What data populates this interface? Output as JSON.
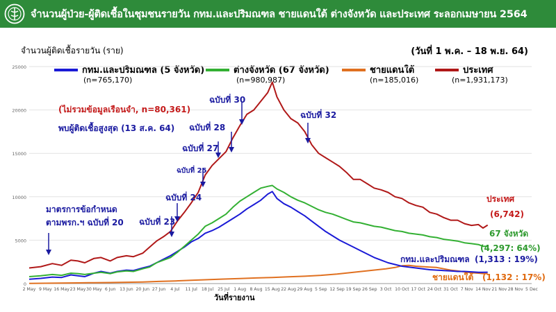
{
  "header": {
    "title": "จำนวนผู้ป่วย-ผู้ติดเชื้อในชุมชนรายวัน กทม.และปริมณฑล ชายแดนใต้ ต่างจังหวัด และประเทศ ระลอกเมษายน 2564",
    "background_color": "#2e8b3a",
    "logo_icon": "ministry-of-public-health-emblem"
  },
  "subtitle": {
    "ylabel": "จำนวนผู้ติดเชื้อรายวัน (ราย)",
    "date_range": "(วันที่ 1 พ.ค. – 18 พ.ย. 64)"
  },
  "legend": [
    {
      "label": "กทม.และปริมณฑล (5 จังหวัด)",
      "n": "(n=765,170)",
      "color": "#1a1ad6"
    },
    {
      "label": "ต่างจังหวัด (67 จังหวัด)",
      "n": "(n=980,987)",
      "color": "#33b033"
    },
    {
      "label": "ชายแดนใต้",
      "n": "(n=185,016)",
      "color": "#e07020"
    },
    {
      "label": "ประเทศ",
      "n": "(n=1,931,173)",
      "color": "#b01818"
    }
  ],
  "annotations": {
    "note_red": "(ไม่รวมข้อมูลเรือนจำ, n=80,361)",
    "note_peak": "พบผู้ติดเชื้อสูงสุด (13 ส.ค. 64)",
    "measure": "มาตรการข้อกำหนด\nตามพรก.ฯ ฉบับที่ 20",
    "measure_line1": "มาตรการข้อกำหนด",
    "measure_line2": "ตามพรก.ฯ ฉบับที่ 20",
    "decrees": [
      {
        "label": "ฉบับที่ 23",
        "x_index": 53
      },
      {
        "label": "ฉบับที่ 24",
        "x_index": 63
      },
      {
        "label": "ฉบับที่ 25",
        "x_index": 69
      },
      {
        "label": "ฉบับที่ 27",
        "x_index": 77
      },
      {
        "label": "ฉบับที่ 28",
        "x_index": 84
      },
      {
        "label": "ฉบับที่ 30",
        "x_index": 91
      },
      {
        "label": "ฉบับที่ 32",
        "x_index": 111
      }
    ],
    "end_labels": {
      "country_name": "ประเทศ",
      "country_value": "(6,742)",
      "provinces_name": "67 จังหวัด",
      "provinces_value": "(4,297: 64%)",
      "bkk_name": "กทม.และปริมณฑล",
      "bkk_value": "(1,313 : 19%)",
      "south_name": "ชายแดนใต้",
      "south_value": "(1,132 : 17%)"
    }
  },
  "chart_data": {
    "type": "line",
    "title": "จำนวนผู้ป่วย-ผู้ติดเชื้อในชุมชนรายวัน กทม.และปริมณฑล ชายแดนใต้ ต่างจังหวัด และประเทศ ระลอกเมษายน 2564",
    "xlabel": "วันที่รายงาน",
    "ylabel": "จำนวนผู้ติดเชื้อรายวัน (ราย)",
    "ylim": [
      0,
      25000
    ],
    "yticks": [
      0,
      5000,
      10000,
      15000,
      20000,
      25000
    ],
    "ytick_labels": [
      "0",
      "5000",
      "10000",
      "15000",
      "20000",
      "25000"
    ],
    "x_range_days": [
      0,
      217
    ],
    "xticks": [
      {
        "day": 0,
        "label": "2 May"
      },
      {
        "day": 7,
        "label": "9 May"
      },
      {
        "day": 14,
        "label": "16 May"
      },
      {
        "day": 21,
        "label": "23 May"
      },
      {
        "day": 28,
        "label": "30 May"
      },
      {
        "day": 35,
        "label": "6 Jun"
      },
      {
        "day": 42,
        "label": "13 Jun"
      },
      {
        "day": 49,
        "label": "20 Jun"
      },
      {
        "day": 56,
        "label": "27 Jun"
      },
      {
        "day": 63,
        "label": "4 Jul"
      },
      {
        "day": 70,
        "label": "11 Jul"
      },
      {
        "day": 77,
        "label": "18 Jul"
      },
      {
        "day": 84,
        "label": "25 Jul"
      },
      {
        "day": 91,
        "label": "1 Aug"
      },
      {
        "day": 98,
        "label": "8 Aug"
      },
      {
        "day": 105,
        "label": "15 Aug"
      },
      {
        "day": 112,
        "label": "22 Aug"
      },
      {
        "day": 119,
        "label": "29 Aug"
      },
      {
        "day": 126,
        "label": "5 Sep"
      },
      {
        "day": 133,
        "label": "12 Sep"
      },
      {
        "day": 140,
        "label": "19 Sep"
      },
      {
        "day": 147,
        "label": "26 Sep"
      },
      {
        "day": 154,
        "label": "3 Oct"
      },
      {
        "day": 161,
        "label": "10 Oct"
      },
      {
        "day": 168,
        "label": "17 Oct"
      },
      {
        "day": 175,
        "label": "24 Oct"
      },
      {
        "day": 182,
        "label": "31 Oct"
      },
      {
        "day": 189,
        "label": "7 Nov"
      },
      {
        "day": 196,
        "label": "14 Nov"
      },
      {
        "day": 203,
        "label": "21 Nov"
      },
      {
        "day": 210,
        "label": "28 Nov"
      },
      {
        "day": 217,
        "label": "5 Dec"
      }
    ],
    "series": [
      {
        "name": "ประเทศ",
        "color": "#b01818",
        "stroke_width": 2,
        "points": [
          [
            0,
            1800
          ],
          [
            5,
            1950
          ],
          [
            10,
            2300
          ],
          [
            14,
            2100
          ],
          [
            18,
            2700
          ],
          [
            21,
            2600
          ],
          [
            24,
            2400
          ],
          [
            28,
            2900
          ],
          [
            31,
            3000
          ],
          [
            35,
            2600
          ],
          [
            38,
            3000
          ],
          [
            42,
            3200
          ],
          [
            45,
            3100
          ],
          [
            49,
            3500
          ],
          [
            52,
            4200
          ],
          [
            55,
            4900
          ],
          [
            58,
            5400
          ],
          [
            61,
            6000
          ],
          [
            64,
            7200
          ],
          [
            67,
            8200
          ],
          [
            70,
            9300
          ],
          [
            73,
            10500
          ],
          [
            76,
            12500
          ],
          [
            79,
            13600
          ],
          [
            82,
            14400
          ],
          [
            85,
            15200
          ],
          [
            88,
            16800
          ],
          [
            91,
            18200
          ],
          [
            94,
            19500
          ],
          [
            97,
            20000
          ],
          [
            100,
            21000
          ],
          [
            103,
            22000
          ],
          [
            105,
            23200
          ],
          [
            107,
            21500
          ],
          [
            110,
            20000
          ],
          [
            113,
            19000
          ],
          [
            116,
            18500
          ],
          [
            119,
            17500
          ],
          [
            122,
            16000
          ],
          [
            125,
            15000
          ],
          [
            128,
            14500
          ],
          [
            131,
            14000
          ],
          [
            134,
            13500
          ],
          [
            137,
            12800
          ],
          [
            140,
            12000
          ],
          [
            143,
            12000
          ],
          [
            146,
            11500
          ],
          [
            149,
            11000
          ],
          [
            152,
            10800
          ],
          [
            155,
            10500
          ],
          [
            158,
            10000
          ],
          [
            161,
            9800
          ],
          [
            164,
            9300
          ],
          [
            167,
            9000
          ],
          [
            170,
            8800
          ],
          [
            173,
            8200
          ],
          [
            176,
            8000
          ],
          [
            179,
            7600
          ],
          [
            182,
            7300
          ],
          [
            185,
            7300
          ],
          [
            188,
            6900
          ],
          [
            191,
            6700
          ],
          [
            194,
            6800
          ],
          [
            196,
            6400
          ],
          [
            198,
            6742
          ]
        ]
      },
      {
        "name": "ต่างจังหวัด (67 จังหวัด)",
        "color": "#33b033",
        "stroke_width": 2,
        "points": [
          [
            0,
            800
          ],
          [
            5,
            900
          ],
          [
            10,
            1050
          ],
          [
            14,
            950
          ],
          [
            18,
            1200
          ],
          [
            21,
            1150
          ],
          [
            24,
            1050
          ],
          [
            28,
            1200
          ],
          [
            31,
            1300
          ],
          [
            35,
            1150
          ],
          [
            38,
            1350
          ],
          [
            42,
            1450
          ],
          [
            45,
            1400
          ],
          [
            49,
            1700
          ],
          [
            52,
            1900
          ],
          [
            55,
            2400
          ],
          [
            58,
            2700
          ],
          [
            61,
            3000
          ],
          [
            64,
            3600
          ],
          [
            67,
            4300
          ],
          [
            70,
            5000
          ],
          [
            73,
            5700
          ],
          [
            76,
            6600
          ],
          [
            79,
            7000
          ],
          [
            82,
            7500
          ],
          [
            85,
            8000
          ],
          [
            88,
            8800
          ],
          [
            91,
            9500
          ],
          [
            94,
            10000
          ],
          [
            97,
            10500
          ],
          [
            100,
            11000
          ],
          [
            103,
            11200
          ],
          [
            105,
            11300
          ],
          [
            107,
            10900
          ],
          [
            110,
            10500
          ],
          [
            113,
            10000
          ],
          [
            116,
            9600
          ],
          [
            119,
            9300
          ],
          [
            122,
            8900
          ],
          [
            125,
            8500
          ],
          [
            128,
            8200
          ],
          [
            131,
            8000
          ],
          [
            134,
            7700
          ],
          [
            137,
            7400
          ],
          [
            140,
            7100
          ],
          [
            143,
            7000
          ],
          [
            146,
            6800
          ],
          [
            149,
            6600
          ],
          [
            152,
            6500
          ],
          [
            155,
            6300
          ],
          [
            158,
            6100
          ],
          [
            161,
            6000
          ],
          [
            164,
            5800
          ],
          [
            167,
            5700
          ],
          [
            170,
            5600
          ],
          [
            173,
            5400
          ],
          [
            176,
            5300
          ],
          [
            179,
            5100
          ],
          [
            182,
            5000
          ],
          [
            185,
            4900
          ],
          [
            188,
            4700
          ],
          [
            191,
            4600
          ],
          [
            194,
            4500
          ],
          [
            196,
            4300
          ],
          [
            198,
            4297
          ]
        ]
      },
      {
        "name": "กทม.และปริมณฑล (5 จังหวัด)",
        "color": "#1a1ad6",
        "stroke_width": 2,
        "points": [
          [
            0,
            500
          ],
          [
            5,
            600
          ],
          [
            10,
            750
          ],
          [
            14,
            700
          ],
          [
            18,
            1000
          ],
          [
            21,
            900
          ],
          [
            24,
            800
          ],
          [
            28,
            1200
          ],
          [
            31,
            1400
          ],
          [
            35,
            1200
          ],
          [
            38,
            1400
          ],
          [
            42,
            1550
          ],
          [
            45,
            1500
          ],
          [
            49,
            1800
          ],
          [
            52,
            2000
          ],
          [
            55,
            2400
          ],
          [
            58,
            2800
          ],
          [
            61,
            3200
          ],
          [
            64,
            3700
          ],
          [
            67,
            4200
          ],
          [
            70,
            4800
          ],
          [
            73,
            5200
          ],
          [
            76,
            5800
          ],
          [
            79,
            6100
          ],
          [
            82,
            6500
          ],
          [
            85,
            7000
          ],
          [
            88,
            7500
          ],
          [
            91,
            8000
          ],
          [
            94,
            8600
          ],
          [
            97,
            9100
          ],
          [
            100,
            9600
          ],
          [
            103,
            10300
          ],
          [
            105,
            10600
          ],
          [
            107,
            9800
          ],
          [
            110,
            9200
          ],
          [
            113,
            8800
          ],
          [
            116,
            8300
          ],
          [
            119,
            7800
          ],
          [
            122,
            7200
          ],
          [
            125,
            6600
          ],
          [
            128,
            6000
          ],
          [
            131,
            5500
          ],
          [
            134,
            5000
          ],
          [
            137,
            4600
          ],
          [
            140,
            4200
          ],
          [
            143,
            3800
          ],
          [
            146,
            3400
          ],
          [
            149,
            3000
          ],
          [
            152,
            2700
          ],
          [
            155,
            2400
          ],
          [
            158,
            2200
          ],
          [
            161,
            2000
          ],
          [
            164,
            1900
          ],
          [
            167,
            1800
          ],
          [
            170,
            1700
          ],
          [
            173,
            1600
          ],
          [
            176,
            1550
          ],
          [
            179,
            1500
          ],
          [
            182,
            1450
          ],
          [
            185,
            1400
          ],
          [
            188,
            1400
          ],
          [
            191,
            1350
          ],
          [
            194,
            1300
          ],
          [
            196,
            1300
          ],
          [
            198,
            1313
          ]
        ]
      },
      {
        "name": "ชายแดนใต้",
        "color": "#e07020",
        "stroke_width": 2,
        "points": [
          [
            0,
            20
          ],
          [
            7,
            40
          ],
          [
            14,
            60
          ],
          [
            21,
            80
          ],
          [
            28,
            100
          ],
          [
            35,
            120
          ],
          [
            42,
            150
          ],
          [
            49,
            180
          ],
          [
            56,
            250
          ],
          [
            63,
            300
          ],
          [
            70,
            380
          ],
          [
            77,
            450
          ],
          [
            84,
            520
          ],
          [
            91,
            580
          ],
          [
            98,
            650
          ],
          [
            105,
            700
          ],
          [
            112,
            780
          ],
          [
            119,
            850
          ],
          [
            126,
            950
          ],
          [
            133,
            1100
          ],
          [
            140,
            1300
          ],
          [
            147,
            1500
          ],
          [
            154,
            1700
          ],
          [
            158,
            1850
          ],
          [
            161,
            2050
          ],
          [
            164,
            2100
          ],
          [
            167,
            2000
          ],
          [
            170,
            1950
          ],
          [
            173,
            1900
          ],
          [
            176,
            1850
          ],
          [
            179,
            1700
          ],
          [
            182,
            1550
          ],
          [
            185,
            1450
          ],
          [
            188,
            1350
          ],
          [
            191,
            1250
          ],
          [
            194,
            1200
          ],
          [
            196,
            1150
          ],
          [
            198,
            1132
          ]
        ]
      }
    ]
  }
}
